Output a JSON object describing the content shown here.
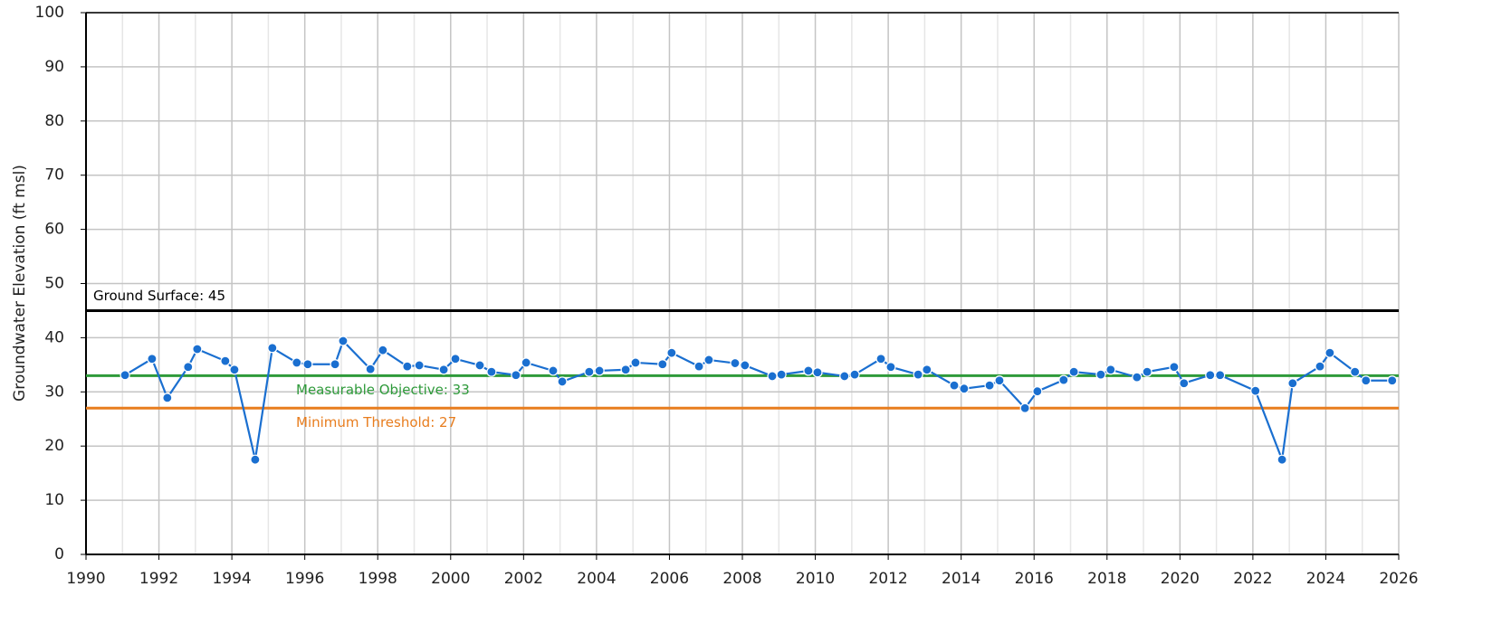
{
  "chart_data": {
    "type": "line",
    "y_label": "Groundwater Elevation (ft msl)",
    "xlim": [
      1990,
      2026
    ],
    "xticks": [
      1990,
      1992,
      1994,
      1996,
      1998,
      2000,
      2002,
      2004,
      2006,
      2008,
      2010,
      2012,
      2014,
      2016,
      2018,
      2020,
      2022,
      2024,
      2026
    ],
    "xminorticks": [
      1991,
      1993,
      1995,
      1997,
      1999,
      2001,
      2003,
      2005,
      2007,
      2009,
      2011,
      2013,
      2015,
      2017,
      2019,
      2021,
      2023,
      2025
    ],
    "ylim": [
      0,
      100
    ],
    "yticks": [
      0,
      10,
      20,
      30,
      40,
      50,
      60,
      70,
      80,
      90,
      100
    ],
    "grid": true,
    "reference_lines": [
      {
        "label": "Ground Surface: 45",
        "value": 45,
        "color": "#000000"
      },
      {
        "label": "Measurable Objective: 33",
        "value": 33,
        "color": "#2e9a3a"
      },
      {
        "label": "Minimum Threshold: 27",
        "value": 27,
        "color": "#e87d1e"
      }
    ],
    "x": [
      1991.07,
      1991.81,
      1992.23,
      1992.8,
      1993.05,
      1993.82,
      1994.07,
      1994.64,
      1995.11,
      1995.78,
      1996.08,
      1996.83,
      1997.05,
      1997.8,
      1998.14,
      1998.81,
      1999.14,
      1999.81,
      2000.13,
      2000.8,
      2001.12,
      2001.79,
      2002.07,
      2002.81,
      2003.06,
      2003.8,
      2004.08,
      2004.8,
      2005.07,
      2005.81,
      2006.06,
      2006.81,
      2007.08,
      2007.8,
      2008.07,
      2008.82,
      2009.07,
      2009.81,
      2010.06,
      2010.8,
      2011.08,
      2011.8,
      2012.07,
      2012.82,
      2013.06,
      2013.81,
      2014.08,
      2014.78,
      2015.05,
      2015.75,
      2016.09,
      2016.81,
      2017.09,
      2017.83,
      2018.1,
      2018.82,
      2019.1,
      2019.84,
      2020.11,
      2020.83,
      2021.1,
      2022.07,
      2022.8,
      2023.09,
      2023.84,
      2024.11,
      2024.8,
      2025.1,
      2025.82
    ],
    "series": [
      {
        "color": "#1a6fd0",
        "values": [
          33.1,
          36.1,
          28.9,
          34.6,
          37.9,
          35.7,
          34.1,
          17.5,
          38.1,
          35.4,
          35.1,
          35.1,
          39.4,
          34.2,
          37.7,
          34.7,
          34.9,
          34.1,
          36.1,
          34.9,
          33.7,
          33.1,
          35.4,
          33.9,
          31.9,
          33.7,
          33.9,
          34.1,
          35.4,
          35.1,
          37.2,
          34.7,
          35.9,
          35.3,
          34.9,
          32.9,
          33.2,
          33.9,
          33.6,
          32.9,
          33.2,
          36.1,
          34.6,
          33.2,
          34.1,
          31.2,
          30.6,
          31.2,
          32.1,
          27.0,
          30.1,
          32.2,
          33.7,
          33.2,
          34.1,
          32.7,
          33.7,
          34.6,
          31.6,
          33.1,
          33.1,
          30.2,
          17.5,
          31.6,
          34.7,
          37.2,
          33.7,
          32.1,
          32.1
        ]
      }
    ]
  }
}
